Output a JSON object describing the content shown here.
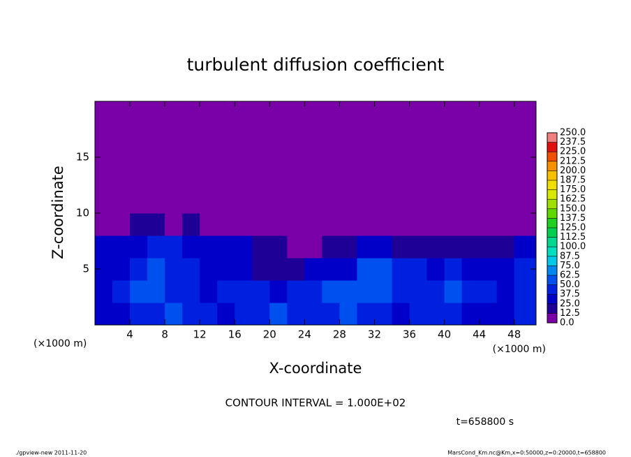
{
  "chart_data": {
    "type": "heatmap",
    "title": "turbulent diffusion coefficient",
    "xlabel": "X-coordinate",
    "ylabel": "Z-coordinate",
    "xunit_left": "(×1000 m)",
    "xunit_right": "(×1000 m)",
    "contour_note": "CONTOUR INTERVAL = 1.000E+02",
    "time_note": "t=658800 s",
    "footer_left": "./gpview-new   2011-11-20",
    "footer_right": "MarsCond_Km.nc@Km,x=0:50000,z=0:20000,t=658800",
    "xlim": [
      0,
      50.5
    ],
    "ylim": [
      0,
      20
    ],
    "xticks": [
      4,
      8,
      12,
      16,
      20,
      24,
      28,
      32,
      36,
      40,
      44,
      48
    ],
    "yticks": [
      5,
      10,
      15
    ],
    "x": [
      1,
      3,
      5,
      7,
      9,
      11,
      13,
      15,
      17,
      19,
      21,
      23,
      25,
      27,
      29,
      31,
      33,
      35,
      37,
      39,
      41,
      43,
      45,
      47,
      49
    ],
    "y": [
      1,
      3,
      5,
      7,
      9,
      11,
      13,
      15,
      17,
      19
    ],
    "z": [
      [
        30,
        35,
        40,
        45,
        50,
        45,
        40,
        35,
        40,
        45,
        50,
        45,
        40,
        45,
        50,
        45,
        40,
        35,
        40,
        45,
        40,
        35,
        30,
        35,
        40
      ],
      [
        35,
        40,
        55,
        50,
        45,
        40,
        35,
        40,
        45,
        40,
        35,
        40,
        45,
        50,
        55,
        60,
        55,
        45,
        40,
        45,
        50,
        45,
        40,
        35,
        40
      ],
      [
        30,
        35,
        45,
        50,
        45,
        40,
        35,
        30,
        25,
        20,
        15,
        20,
        25,
        30,
        35,
        60,
        50,
        45,
        40,
        35,
        40,
        35,
        30,
        35,
        40
      ],
      [
        30,
        30,
        35,
        40,
        40,
        35,
        30,
        30,
        25,
        20,
        15,
        10,
        10,
        15,
        20,
        30,
        25,
        20,
        15,
        20,
        20,
        15,
        15,
        20,
        30
      ],
      [
        0,
        5,
        15,
        15,
        10,
        15,
        10,
        0,
        0,
        0,
        0,
        0,
        0,
        0,
        0,
        0,
        0,
        0,
        0,
        0,
        0,
        0,
        0,
        0,
        0
      ],
      [
        0,
        0,
        0,
        0,
        0,
        0,
        0,
        0,
        0,
        0,
        0,
        0,
        0,
        0,
        0,
        0,
        0,
        0,
        0,
        0,
        0,
        0,
        0,
        0,
        0
      ],
      [
        0,
        0,
        0,
        0,
        0,
        0,
        0,
        0,
        0,
        0,
        0,
        0,
        0,
        0,
        0,
        0,
        0,
        0,
        0,
        0,
        0,
        0,
        0,
        0,
        0
      ],
      [
        0,
        0,
        0,
        0,
        0,
        0,
        0,
        0,
        0,
        0,
        0,
        0,
        0,
        0,
        0,
        0,
        0,
        0,
        0,
        0,
        0,
        0,
        0,
        0,
        0
      ],
      [
        0,
        0,
        0,
        0,
        0,
        0,
        0,
        0,
        0,
        0,
        0,
        0,
        0,
        0,
        0,
        0,
        0,
        0,
        0,
        0,
        0,
        0,
        0,
        0,
        0
      ],
      [
        0,
        0,
        0,
        0,
        0,
        0,
        0,
        0,
        0,
        0,
        0,
        0,
        0,
        0,
        0,
        0,
        0,
        0,
        0,
        0,
        0,
        0,
        0,
        0,
        0
      ]
    ],
    "colorbar": {
      "clim": [
        0,
        250
      ],
      "ticks": [
        {
          "value": 0,
          "label": "0.0"
        },
        {
          "value": 12.5,
          "label": "12.5"
        },
        {
          "value": 25,
          "label": "25.0"
        },
        {
          "value": 37.5,
          "label": "37.5"
        },
        {
          "value": 50,
          "label": "50.0"
        },
        {
          "value": 62.5,
          "label": "62.5"
        },
        {
          "value": 75,
          "label": "75.0"
        },
        {
          "value": 87.5,
          "label": "87.5"
        },
        {
          "value": 100,
          "label": "100.0"
        },
        {
          "value": 112.5,
          "label": "112.5"
        },
        {
          "value": 125,
          "label": "125.0"
        },
        {
          "value": 137.5,
          "label": "137.5"
        },
        {
          "value": 150,
          "label": "150.0"
        },
        {
          "value": 162.5,
          "label": "162.5"
        },
        {
          "value": 175,
          "label": "175.0"
        },
        {
          "value": 187.5,
          "label": "187.5"
        },
        {
          "value": 200,
          "label": "200.0"
        },
        {
          "value": 212.5,
          "label": "212.5"
        },
        {
          "value": 225,
          "label": "225.0"
        },
        {
          "value": 237.5,
          "label": "237.5"
        },
        {
          "value": 250,
          "label": "250.0"
        }
      ],
      "colors": [
        "#7a00a8",
        "#1e0096",
        "#0000c8",
        "#0020e0",
        "#0050f0",
        "#0088f0",
        "#00c8e8",
        "#00e0c0",
        "#00d890",
        "#00d050",
        "#20d020",
        "#60d800",
        "#a0e000",
        "#d8e800",
        "#f0e000",
        "#f8c000",
        "#f89000",
        "#f05000",
        "#e01010",
        "#f08080"
      ]
    }
  }
}
